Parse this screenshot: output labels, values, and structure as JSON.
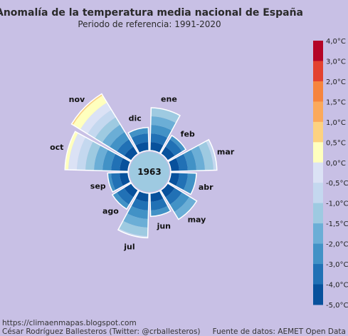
{
  "header": {
    "title": "Anomalía de la temperatura media nacional de España",
    "subtitle": "Periodo de referencia: 1991-2020"
  },
  "footer": {
    "blog": "https://climaenmapas.blogspot.com",
    "author": "César Rodríguez Ballesteros (Twitter: @crballesteros)",
    "source": "Fuente de datos: AEMET Open Data"
  },
  "chart_data": {
    "type": "radial-bar",
    "center_label": "1963",
    "categories": [
      "ene",
      "feb",
      "mar",
      "abr",
      "may",
      "jun",
      "jul",
      "ago",
      "sep",
      "oct",
      "nov",
      "dic"
    ],
    "anomaly_c": [
      -1.0,
      -2.5,
      -0.8,
      -2.0,
      -1.5,
      -2.3,
      -0.9,
      -2.4,
      -2.6,
      0.2,
      0.6,
      -2.3
    ],
    "rlim": [
      -5.0,
      0.6
    ],
    "legend": {
      "ticks": [
        "4,0°C",
        "3,0°C",
        "2,0°C",
        "1,5°C",
        "1,0°C",
        "0,5°C",
        "0,0°C",
        "-0,5°C",
        "-1,0°C",
        "-1,5°C",
        "-2,0°C",
        "-3,0°C",
        "-4,0°C",
        "-5,0°C"
      ],
      "colors": [
        "#b40426",
        "#e3412f",
        "#f6843d",
        "#fba95b",
        "#fdd280",
        "#ffffbe",
        "#dbe2f5",
        "#c4d8ef",
        "#9ecae1",
        "#6baed6",
        "#4292c6",
        "#2171b5",
        "#08519c"
      ]
    }
  }
}
